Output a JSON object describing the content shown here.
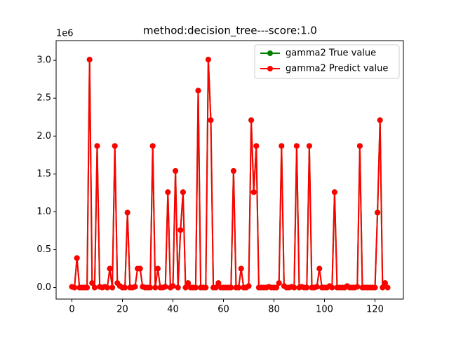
{
  "chart_data": {
    "type": "line",
    "title": "method:decision_tree---score:1.0",
    "y_offset_label": "1e6",
    "x": [
      0,
      1,
      2,
      3,
      4,
      5,
      6,
      7,
      8,
      9,
      10,
      11,
      12,
      13,
      14,
      15,
      16,
      17,
      18,
      19,
      20,
      21,
      22,
      23,
      24,
      25,
      26,
      27,
      28,
      29,
      30,
      31,
      32,
      33,
      34,
      35,
      36,
      37,
      38,
      39,
      40,
      41,
      42,
      43,
      44,
      45,
      46,
      47,
      48,
      49,
      50,
      51,
      52,
      53,
      54,
      55,
      56,
      57,
      58,
      59,
      60,
      61,
      62,
      63,
      64,
      65,
      66,
      67,
      68,
      69,
      70,
      71,
      72,
      73,
      74,
      75,
      76,
      77,
      78,
      79,
      80,
      81,
      82,
      83,
      84,
      85,
      86,
      87,
      88,
      89,
      90,
      91,
      92,
      93,
      94,
      95,
      96,
      97,
      98,
      99,
      100,
      101,
      102,
      103,
      104,
      105,
      106,
      107,
      108,
      109,
      110,
      111,
      112,
      113,
      114,
      115,
      116,
      117,
      118,
      119,
      120,
      121,
      122,
      123,
      124,
      125
    ],
    "series": [
      {
        "name": "gamma2 True value",
        "color": "#008000",
        "values": [
          0.01,
          0,
          0.39,
          0,
          0,
          0,
          0,
          3.01,
          0.06,
          0,
          1.87,
          0.01,
          0,
          0.01,
          0,
          0.25,
          0,
          1.87,
          0.06,
          0.02,
          0,
          0,
          0.99,
          0,
          0,
          0.01,
          0.25,
          0.25,
          0.01,
          0,
          0,
          0,
          1.87,
          0,
          0.25,
          0,
          0,
          0.01,
          1.26,
          0,
          0.02,
          1.54,
          0,
          0.76,
          1.26,
          0,
          0.06,
          0,
          0,
          0,
          2.6,
          0,
          0,
          0,
          3.01,
          2.21,
          0,
          0,
          0.06,
          0,
          0,
          0,
          0,
          0,
          1.54,
          0,
          0,
          0.25,
          0,
          0,
          0.02,
          2.21,
          1.26,
          1.87,
          0,
          0,
          0,
          0,
          0.01,
          0,
          0,
          0,
          0.06,
          1.87,
          0.02,
          0,
          0,
          0.01,
          0,
          1.87,
          0,
          0.01,
          0,
          0,
          1.87,
          0,
          0,
          0.01,
          0.25,
          0,
          0,
          0,
          0.02,
          0,
          1.26,
          0,
          0,
          0,
          0,
          0.02,
          0,
          0,
          0,
          0.01,
          1.87,
          0,
          0,
          0,
          0,
          0,
          0,
          0.99,
          2.21,
          0,
          0.06,
          0
        ]
      },
      {
        "name": "gamma2 Predict value",
        "color": "#ff0000",
        "values": [
          0.01,
          0,
          0.39,
          0,
          0,
          0,
          0,
          3.01,
          0.06,
          0,
          1.87,
          0.01,
          0,
          0.01,
          0,
          0.25,
          0,
          1.87,
          0.06,
          0.02,
          0,
          0,
          0.99,
          0,
          0,
          0.01,
          0.25,
          0.25,
          0.01,
          0,
          0,
          0,
          1.87,
          0,
          0.25,
          0,
          0,
          0.01,
          1.26,
          0,
          0.02,
          1.54,
          0,
          0.76,
          1.26,
          0,
          0.06,
          0,
          0,
          0,
          2.6,
          0,
          0,
          0,
          3.01,
          2.21,
          0,
          0,
          0.06,
          0,
          0,
          0,
          0,
          0,
          1.54,
          0,
          0,
          0.25,
          0,
          0,
          0.02,
          2.21,
          1.26,
          1.87,
          0,
          0,
          0,
          0,
          0.01,
          0,
          0,
          0,
          0.06,
          1.87,
          0.02,
          0,
          0,
          0.01,
          0,
          1.87,
          0,
          0.01,
          0,
          0,
          1.87,
          0,
          0,
          0.01,
          0.25,
          0,
          0,
          0,
          0.02,
          0,
          1.26,
          0,
          0,
          0,
          0,
          0.02,
          0,
          0,
          0,
          0.01,
          1.87,
          0,
          0,
          0,
          0,
          0,
          0,
          0.99,
          2.21,
          0,
          0.06,
          0
        ]
      }
    ],
    "xlim": [
      -6.25,
      131.25
    ],
    "xticks": [
      0,
      20,
      40,
      60,
      80,
      100,
      120
    ],
    "ylim": [
      -0.152,
      3.26
    ],
    "yticks": [
      {
        "value": 0,
        "label": "0.0"
      },
      {
        "value": 0.5,
        "label": "0.5"
      },
      {
        "value": 1,
        "label": "1.0"
      },
      {
        "value": 1.5,
        "label": "1.5"
      },
      {
        "value": 2,
        "label": "2.0"
      },
      {
        "value": 2.5,
        "label": "2.5"
      },
      {
        "value": 3,
        "label": "3.0"
      }
    ],
    "legend": "upper right",
    "grid": false
  }
}
